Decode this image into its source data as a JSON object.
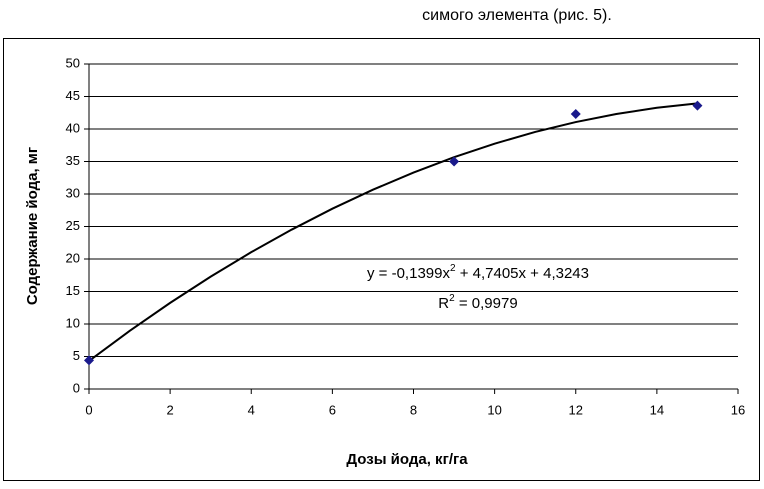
{
  "document_text": "симого элемента (рис. 5).",
  "chart_data": {
    "type": "scatter",
    "x_label": "Дозы йода, кг/га",
    "y_label": "Содержание йода, мг",
    "equation": [
      "y = -0,1399x",
      "2",
      " + 4,7405x + 4,3243"
    ],
    "r_squared": [
      "R",
      "2",
      " = 0,9979"
    ],
    "xlim": [
      0,
      16
    ],
    "xticks": [
      0,
      2,
      4,
      6,
      8,
      10,
      12,
      14,
      16
    ],
    "ylim": [
      0,
      50
    ],
    "yticks": [
      0,
      5,
      10,
      15,
      20,
      25,
      30,
      35,
      40,
      45,
      50
    ],
    "grid": true,
    "series": [
      {
        "kind": "points",
        "color": "#1a1a8c",
        "x": [
          0,
          9,
          12,
          15
        ],
        "values": [
          4.4,
          35,
          42.3,
          43.6
        ]
      },
      {
        "kind": "trendline",
        "color": "#000000",
        "x": [
          0,
          1,
          2,
          3,
          4,
          5,
          6,
          7,
          8,
          9,
          10,
          11,
          12,
          13,
          14,
          15
        ],
        "values": [
          4.32,
          8.93,
          13.25,
          17.29,
          21.05,
          24.53,
          27.74,
          30.66,
          33.3,
          35.67,
          37.74,
          39.55,
          41.07,
          42.31,
          43.27,
          43.95
        ]
      }
    ]
  }
}
